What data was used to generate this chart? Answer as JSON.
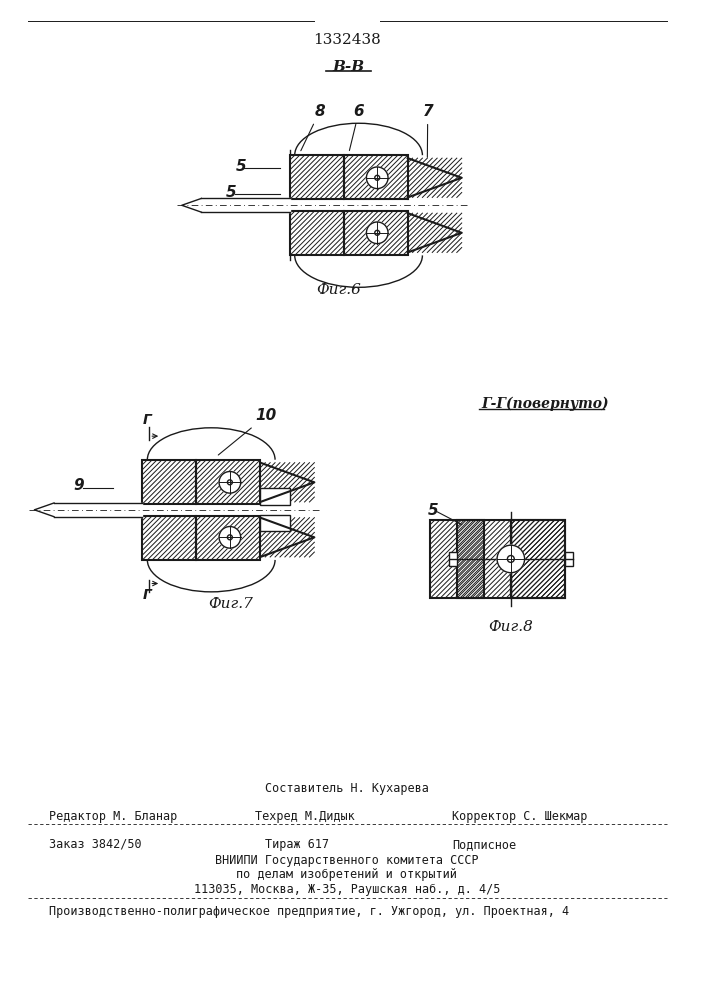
{
  "patent_number": "1332438",
  "background_color": "#ffffff",
  "line_color": "#1a1a1a",
  "fig6_label": "Фиг.6",
  "fig7_label": "Фиг.7",
  "fig8_label": "Фиг.8",
  "section_bb": "В-В",
  "section_gg": "Г-Г(повернуто)",
  "footer_line1_center_top": "Составитель Н. Кухарева",
  "footer_line1_left": "Редактор М. Бланар",
  "footer_line1_center": "Техред М.Дидык",
  "footer_line1_right": "Корректор С. Шекмар",
  "footer_line2_left": "Заказ 3842/50",
  "footer_line2_center": "Тираж 617",
  "footer_line2_right": "Подписное",
  "footer_line3": "ВНИИПИ Государственного комитета СССР",
  "footer_line4": "по делам изобретений и открытий",
  "footer_line5": "113035, Москва, Ж-35, Раушская наб., д. 4/5",
  "footer_line6": "Производственно-полиграфическое предприятие, г. Ужгород, ул. Проектная, 4"
}
